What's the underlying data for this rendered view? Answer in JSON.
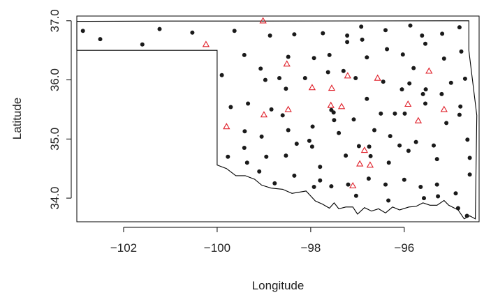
{
  "chart_data": {
    "type": "scatter",
    "title": "",
    "xlabel": "Longitude",
    "ylabel": "Latitude",
    "xlim": [
      -103.0,
      -94.4
    ],
    "ylim": [
      33.6,
      37.08
    ],
    "x_ticks": [
      {
        "value": -102,
        "label": "−102"
      },
      {
        "value": -100,
        "label": "−100"
      },
      {
        "value": -98,
        "label": "−98"
      },
      {
        "value": -96,
        "label": "−96"
      }
    ],
    "y_ticks": [
      {
        "value": 34.0,
        "label": "34.0"
      },
      {
        "value": 35.0,
        "label": "35.0"
      },
      {
        "value": 36.0,
        "label": "36.0"
      },
      {
        "value": 37.0,
        "label": "37.0"
      }
    ],
    "grid": false,
    "legend": "none",
    "outline": {
      "description": "Oklahoma state boundary",
      "color": "#000000",
      "points": [
        [
          -103.0,
          36.99
        ],
        [
          -101.0,
          36.995
        ],
        [
          -99.0,
          36.995
        ],
        [
          -97.0,
          36.998
        ],
        [
          -94.62,
          37.0
        ],
        [
          -94.62,
          36.5
        ],
        [
          -94.45,
          35.4
        ],
        [
          -94.48,
          33.65
        ],
        [
          -94.6,
          33.7
        ],
        [
          -94.72,
          33.65
        ],
        [
          -94.85,
          33.8
        ],
        [
          -95.05,
          33.88
        ],
        [
          -95.15,
          33.96
        ],
        [
          -95.3,
          33.88
        ],
        [
          -95.45,
          33.88
        ],
        [
          -95.6,
          33.92
        ],
        [
          -95.75,
          33.86
        ],
        [
          -95.9,
          33.85
        ],
        [
          -96.1,
          33.8
        ],
        [
          -96.25,
          33.85
        ],
        [
          -96.4,
          33.75
        ],
        [
          -96.55,
          33.82
        ],
        [
          -96.7,
          33.78
        ],
        [
          -96.85,
          33.84
        ],
        [
          -97.0,
          33.73
        ],
        [
          -97.1,
          33.85
        ],
        [
          -97.25,
          33.85
        ],
        [
          -97.4,
          33.82
        ],
        [
          -97.5,
          33.92
        ],
        [
          -97.6,
          33.83
        ],
        [
          -97.75,
          33.9
        ],
        [
          -97.9,
          33.95
        ],
        [
          -98.1,
          34.12
        ],
        [
          -98.4,
          34.08
        ],
        [
          -98.6,
          34.15
        ],
        [
          -98.85,
          34.17
        ],
        [
          -99.05,
          34.22
        ],
        [
          -99.2,
          34.32
        ],
        [
          -99.4,
          34.38
        ],
        [
          -99.6,
          34.38
        ],
        [
          -99.8,
          34.5
        ],
        [
          -100.0,
          34.56
        ],
        [
          -100.0,
          36.5
        ],
        [
          -103.0,
          36.5
        ],
        [
          -103.0,
          36.99
        ]
      ]
    },
    "series": [
      {
        "marker": "filled-circle",
        "color": "#1a1a1a",
        "points": [
          [
            -102.87,
            36.83
          ],
          [
            -102.5,
            36.69
          ],
          [
            -101.6,
            36.6
          ],
          [
            -101.23,
            36.86
          ],
          [
            -100.53,
            36.8
          ],
          [
            -99.63,
            36.83
          ],
          [
            -98.87,
            36.75
          ],
          [
            -98.35,
            36.77
          ],
          [
            -97.74,
            36.79
          ],
          [
            -97.22,
            36.75
          ],
          [
            -96.92,
            36.9
          ],
          [
            -96.9,
            36.68
          ],
          [
            -96.4,
            36.84
          ],
          [
            -95.87,
            36.92
          ],
          [
            -95.62,
            36.75
          ],
          [
            -95.19,
            36.78
          ],
          [
            -94.82,
            36.89
          ],
          [
            -94.78,
            36.48
          ],
          [
            -99.9,
            36.08
          ],
          [
            -99.42,
            36.42
          ],
          [
            -99.07,
            36.19
          ],
          [
            -98.48,
            36.39
          ],
          [
            -97.93,
            36.37
          ],
          [
            -97.6,
            36.42
          ],
          [
            -97.22,
            36.64
          ],
          [
            -96.8,
            36.38
          ],
          [
            -96.37,
            36.52
          ],
          [
            -96.03,
            36.43
          ],
          [
            -95.55,
            36.61
          ],
          [
            -95.15,
            36.36
          ],
          [
            -94.7,
            36.02
          ],
          [
            -98.97,
            36.0
          ],
          [
            -98.67,
            36.03
          ],
          [
            -98.12,
            36.03
          ],
          [
            -97.63,
            36.13
          ],
          [
            -97.3,
            36.15
          ],
          [
            -97.04,
            36.03
          ],
          [
            -96.45,
            35.97
          ],
          [
            -96.05,
            35.84
          ],
          [
            -95.8,
            36.2
          ],
          [
            -95.89,
            35.94
          ],
          [
            -95.6,
            35.76
          ],
          [
            -95.54,
            35.84
          ],
          [
            -95.0,
            35.95
          ],
          [
            -99.71,
            35.54
          ],
          [
            -99.34,
            35.6
          ],
          [
            -98.84,
            35.5
          ],
          [
            -98.53,
            35.85
          ],
          [
            -98.6,
            35.4
          ],
          [
            -97.51,
            35.45
          ],
          [
            -97.56,
            35.49
          ],
          [
            -96.8,
            35.68
          ],
          [
            -96.5,
            35.43
          ],
          [
            -96.3,
            35.05
          ],
          [
            -95.99,
            35.43
          ],
          [
            -95.55,
            35.6
          ],
          [
            -95.2,
            35.76
          ],
          [
            -94.82,
            35.41
          ],
          [
            -99.41,
            35.13
          ],
          [
            -99.05,
            35.04
          ],
          [
            -98.48,
            35.15
          ],
          [
            -97.96,
            35.21
          ],
          [
            -97.5,
            35.32
          ],
          [
            -97.08,
            35.33
          ],
          [
            -96.64,
            35.15
          ],
          [
            -96.2,
            35.43
          ],
          [
            -95.75,
            34.95
          ],
          [
            -95.1,
            35.27
          ],
          [
            -94.8,
            35.55
          ],
          [
            -99.77,
            34.7
          ],
          [
            -99.42,
            34.85
          ],
          [
            -98.95,
            34.7
          ],
          [
            -98.53,
            34.72
          ],
          [
            -98.3,
            34.92
          ],
          [
            -98.03,
            34.97
          ],
          [
            -97.97,
            34.87
          ],
          [
            -97.8,
            34.53
          ],
          [
            -97.4,
            35.1
          ],
          [
            -97.25,
            34.72
          ],
          [
            -96.97,
            34.88
          ],
          [
            -96.75,
            34.87
          ],
          [
            -96.72,
            34.71
          ],
          [
            -96.33,
            34.6
          ],
          [
            -96.1,
            34.89
          ],
          [
            -95.91,
            34.8
          ],
          [
            -95.37,
            34.89
          ],
          [
            -95.3,
            34.66
          ],
          [
            -94.65,
            34.99
          ],
          [
            -99.36,
            34.6
          ],
          [
            -99.1,
            34.45
          ],
          [
            -98.77,
            34.25
          ],
          [
            -98.35,
            34.38
          ],
          [
            -97.93,
            34.19
          ],
          [
            -97.56,
            34.2
          ],
          [
            -97.2,
            34.23
          ],
          [
            -96.76,
            34.33
          ],
          [
            -96.4,
            34.23
          ],
          [
            -96.0,
            34.31
          ],
          [
            -95.65,
            34.19
          ],
          [
            -95.3,
            34.23
          ],
          [
            -94.9,
            34.08
          ],
          [
            -97.03,
            34.04
          ],
          [
            -96.34,
            33.96
          ],
          [
            -95.58,
            34.0
          ],
          [
            -95.28,
            34.03
          ],
          [
            -94.85,
            33.83
          ],
          [
            -94.6,
            34.4
          ],
          [
            -94.66,
            33.7
          ],
          [
            -94.6,
            34.68
          ],
          [
            -97.8,
            34.3
          ]
        ]
      },
      {
        "marker": "open-triangle",
        "color": "#e0202a",
        "points": [
          [
            -99.02,
            37.0
          ],
          [
            -100.24,
            36.6
          ],
          [
            -98.51,
            36.27
          ],
          [
            -97.21,
            36.07
          ],
          [
            -96.57,
            36.03
          ],
          [
            -95.47,
            36.15
          ],
          [
            -97.97,
            35.87
          ],
          [
            -97.55,
            35.86
          ],
          [
            -98.48,
            35.5
          ],
          [
            -97.57,
            35.57
          ],
          [
            -97.34,
            35.55
          ],
          [
            -99.0,
            35.41
          ],
          [
            -95.92,
            35.59
          ],
          [
            -95.7,
            35.31
          ],
          [
            -95.15,
            35.5
          ],
          [
            -99.8,
            35.21
          ],
          [
            -96.85,
            34.81
          ],
          [
            -96.95,
            34.58
          ],
          [
            -96.73,
            34.56
          ],
          [
            -97.1,
            34.21
          ]
        ]
      }
    ]
  }
}
